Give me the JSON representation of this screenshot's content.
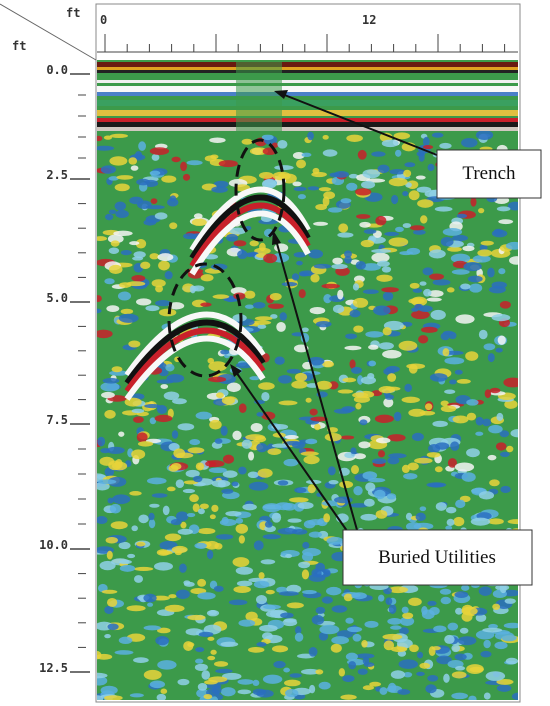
{
  "top_axis": {
    "unit": "ft",
    "labels": [
      "0",
      "12"
    ]
  },
  "left_axis": {
    "unit": "ft",
    "labels": [
      "0.0",
      "2.5",
      "5.0",
      "7.5",
      "10.0",
      "12.5"
    ]
  },
  "callouts": [
    {
      "label": "Trench"
    },
    {
      "label": "Buried Utilities"
    }
  ]
}
